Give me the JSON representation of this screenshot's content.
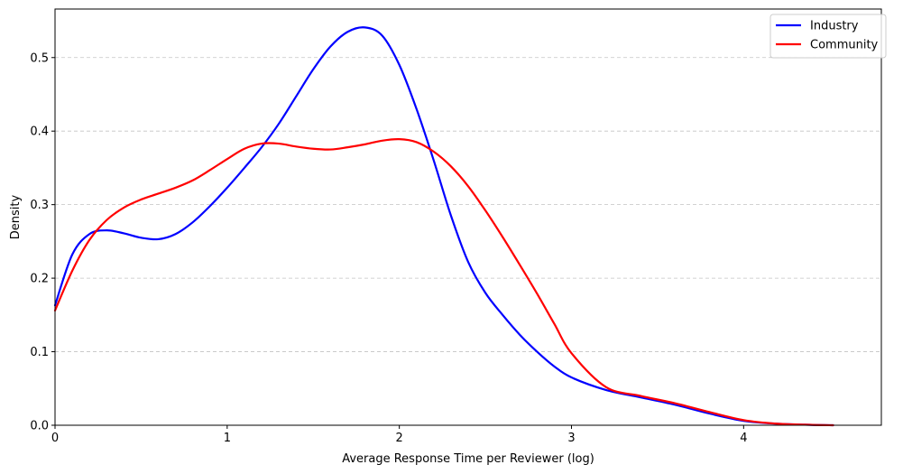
{
  "chart_data": {
    "type": "line",
    "title": "",
    "xlabel": "Average Response Time per Reviewer (log)",
    "ylabel": "Density",
    "xlim": [
      0,
      4.8
    ],
    "ylim": [
      0,
      0.566
    ],
    "xticks": [
      0,
      1,
      2,
      3,
      4
    ],
    "yticks": [
      0.0,
      0.1,
      0.2,
      0.3,
      0.4,
      0.5
    ],
    "xtick_labels": [
      "0",
      "1",
      "2",
      "3",
      "4"
    ],
    "ytick_labels": [
      "0.0",
      "0.1",
      "0.2",
      "0.3",
      "0.4",
      "0.5"
    ],
    "grid": "horizontal dashed",
    "legend_position": "top-right",
    "series": [
      {
        "name": "Industry",
        "color": "#0000ff",
        "x": [
          0,
          0.1,
          0.2,
          0.3,
          0.4,
          0.5,
          0.6,
          0.7,
          0.8,
          0.9,
          1.0,
          1.1,
          1.2,
          1.3,
          1.4,
          1.5,
          1.6,
          1.7,
          1.8,
          1.9,
          2.0,
          2.1,
          2.2,
          2.3,
          2.4,
          2.5,
          2.6,
          2.7,
          2.8,
          2.9,
          3.0,
          3.2,
          3.4,
          3.6,
          3.8,
          4.0,
          4.2,
          4.4,
          4.52
        ],
        "y": [
          0.163,
          0.232,
          0.26,
          0.265,
          0.261,
          0.255,
          0.253,
          0.26,
          0.276,
          0.298,
          0.323,
          0.35,
          0.378,
          0.41,
          0.447,
          0.484,
          0.515,
          0.535,
          0.541,
          0.53,
          0.49,
          0.43,
          0.36,
          0.285,
          0.222,
          0.18,
          0.15,
          0.123,
          0.1,
          0.08,
          0.065,
          0.048,
          0.038,
          0.028,
          0.016,
          0.006,
          0.002,
          0.0005,
          0.0
        ]
      },
      {
        "name": "Community",
        "color": "#ff0000",
        "x": [
          0,
          0.1,
          0.2,
          0.3,
          0.4,
          0.5,
          0.6,
          0.7,
          0.8,
          0.9,
          1.0,
          1.1,
          1.2,
          1.3,
          1.4,
          1.5,
          1.6,
          1.7,
          1.8,
          1.9,
          2.0,
          2.1,
          2.2,
          2.3,
          2.4,
          2.5,
          2.6,
          2.7,
          2.8,
          2.9,
          3.0,
          3.2,
          3.4,
          3.6,
          3.8,
          4.0,
          4.2,
          4.4,
          4.52
        ],
        "y": [
          0.156,
          0.21,
          0.252,
          0.279,
          0.296,
          0.307,
          0.315,
          0.323,
          0.333,
          0.347,
          0.362,
          0.376,
          0.383,
          0.383,
          0.379,
          0.376,
          0.375,
          0.378,
          0.382,
          0.387,
          0.389,
          0.385,
          0.372,
          0.352,
          0.325,
          0.292,
          0.256,
          0.218,
          0.179,
          0.138,
          0.098,
          0.052,
          0.04,
          0.03,
          0.018,
          0.007,
          0.002,
          0.0005,
          0.0
        ]
      }
    ]
  }
}
